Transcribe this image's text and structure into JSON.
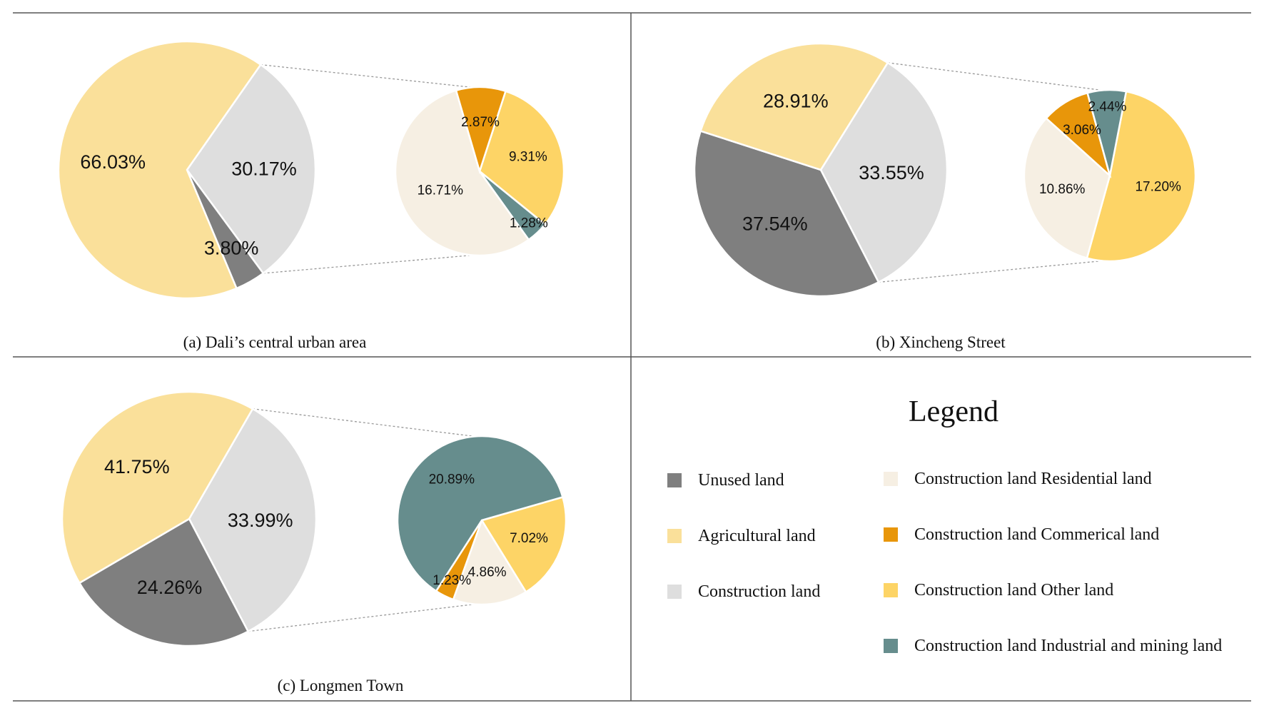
{
  "colors": {
    "unused": "#7f7f7f",
    "agricultural": "#fae09a",
    "construction": "#dedede",
    "residential": "#f6efe3",
    "commercial": "#e8960a",
    "other": "#fdd466",
    "industrial": "#668d8d"
  },
  "chart_data": [
    {
      "type": "pie",
      "caption": "(a)  Dali’s central urban area",
      "main": {
        "slices": [
          {
            "category": "construction",
            "value": 30.17,
            "label": "30.17%"
          },
          {
            "category": "unused",
            "value": 3.8,
            "label": "3.80%"
          },
          {
            "category": "agricultural",
            "value": 66.03,
            "label": "66.03%"
          }
        ]
      },
      "detail": {
        "slices": [
          {
            "category": "other",
            "value": 9.31,
            "label": "9.31%"
          },
          {
            "category": "industrial",
            "value": 1.28,
            "label": "1.28%"
          },
          {
            "category": "residential",
            "value": 16.71,
            "label": "16.71%"
          },
          {
            "category": "commercial",
            "value": 2.87,
            "label": "2.87%"
          }
        ]
      }
    },
    {
      "type": "pie",
      "caption": "(b)  Xincheng Street",
      "main": {
        "slices": [
          {
            "category": "construction",
            "value": 33.55,
            "label": "33.55%"
          },
          {
            "category": "unused",
            "value": 37.54,
            "label": "37.54%"
          },
          {
            "category": "agricultural",
            "value": 28.91,
            "label": "28.91%"
          }
        ]
      },
      "detail": {
        "slices": [
          {
            "category": "other",
            "value": 17.2,
            "label": "17.20%"
          },
          {
            "category": "residential",
            "value": 10.86,
            "label": "10.86%"
          },
          {
            "category": "commercial",
            "value": 3.06,
            "label": "3.06%"
          },
          {
            "category": "industrial",
            "value": 2.44,
            "label": "2.44%"
          }
        ]
      }
    },
    {
      "type": "pie",
      "caption": "(c)  Longmen Town",
      "main": {
        "slices": [
          {
            "category": "construction",
            "value": 33.99,
            "label": "33.99%"
          },
          {
            "category": "unused",
            "value": 24.26,
            "label": "24.26%"
          },
          {
            "category": "agricultural",
            "value": 41.75,
            "label": "41.75%"
          }
        ]
      },
      "detail": {
        "slices": [
          {
            "category": "other",
            "value": 7.02,
            "label": "7.02%"
          },
          {
            "category": "residential",
            "value": 4.86,
            "label": "4.86%"
          },
          {
            "category": "commercial",
            "value": 1.23,
            "label": "1.23%"
          },
          {
            "category": "industrial",
            "value": 20.89,
            "label": "20.89%"
          }
        ]
      }
    }
  ],
  "legend": {
    "title": "Legend",
    "items": [
      {
        "category": "unused",
        "label": "Unused land"
      },
      {
        "category": "agricultural",
        "label": "Agricultural land"
      },
      {
        "category": "construction",
        "label": "Construction land"
      },
      {
        "category": "residential",
        "label": "Construction land  Residential land"
      },
      {
        "category": "commercial",
        "label": "Construction land  Commerical land"
      },
      {
        "category": "other",
        "label": "Construction land  Other land"
      },
      {
        "category": "industrial",
        "label": "Construction land  Industrial and mining land"
      }
    ]
  }
}
